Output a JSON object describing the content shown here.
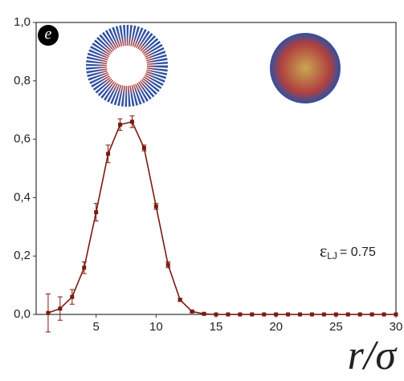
{
  "chart_data": {
    "type": "scatter",
    "panel_label": "e",
    "xlabel": "r/σ",
    "annotation": {
      "symbol": "ε",
      "subscript": "LJ",
      "text": "= 0.75"
    },
    "xlim": [
      0,
      30
    ],
    "ylim": [
      0,
      1
    ],
    "xticks": [
      5,
      10,
      15,
      20,
      25,
      30
    ],
    "yticks": [
      {
        "value": 0,
        "label": "0,0"
      },
      {
        "value": 0.2,
        "label": "0,2"
      },
      {
        "value": 0.4,
        "label": "0,4"
      },
      {
        "value": 0.6,
        "label": "0,6"
      },
      {
        "value": 0.8,
        "label": "0,8"
      },
      {
        "value": 1,
        "label": "1,0"
      }
    ],
    "series": [
      {
        "color": "#7a1a10",
        "x": [
          1,
          2,
          3,
          4,
          5,
          6,
          7,
          8,
          9,
          10,
          11,
          12,
          13,
          14,
          15,
          16,
          17,
          18,
          19,
          20,
          21,
          22,
          23,
          24,
          25,
          26,
          27,
          28,
          29,
          30
        ],
        "values": [
          0.005,
          0.02,
          0.06,
          0.16,
          0.35,
          0.55,
          0.65,
          0.66,
          0.57,
          0.37,
          0.17,
          0.05,
          0.01,
          0.002,
          0,
          0,
          0,
          0,
          0,
          0,
          0,
          0,
          0,
          0,
          0,
          0,
          0,
          0,
          0,
          0
        ],
        "errors": [
          0.065,
          0.04,
          0.025,
          0.02,
          0.03,
          0.03,
          0.02,
          0.02,
          0.01,
          0.01,
          0.01,
          0.005,
          0.003,
          0,
          0,
          0,
          0,
          0,
          0,
          0,
          0,
          0,
          0,
          0,
          0,
          0,
          0,
          0,
          0,
          0
        ]
      }
    ]
  }
}
